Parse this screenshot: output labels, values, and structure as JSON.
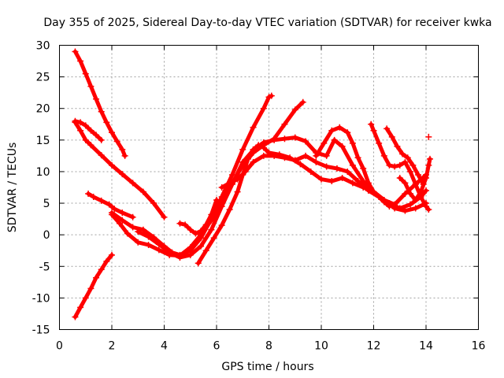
{
  "chart_data": {
    "type": "scatter",
    "title": "Day 355 of 2025, Sidereal Day-to-day VTEC variation (SDTVAR) for receiver kwka",
    "xlabel": "GPS time / hours",
    "ylabel": "SDTVAR / TECUs",
    "xlim": [
      0,
      16
    ],
    "ylim": [
      -15,
      30
    ],
    "x_ticks": [
      0,
      2,
      4,
      6,
      8,
      10,
      12,
      14,
      16
    ],
    "y_ticks": [
      -15,
      -10,
      -5,
      0,
      5,
      10,
      15,
      20,
      25,
      30
    ],
    "grid": true,
    "marker": "plus",
    "color": "#ff0000",
    "series": [
      {
        "x": [
          0.6,
          0.8,
          1.0,
          1.2,
          1.4,
          1.6,
          1.8,
          2.0,
          2.2,
          2.4,
          2.5
        ],
        "y": [
          29,
          27.5,
          25.5,
          23.5,
          21.5,
          19.5,
          17.8,
          16.2,
          14.8,
          13.5,
          12.5
        ]
      },
      {
        "x": [
          0.6,
          0.8,
          1.0,
          1.2,
          1.4,
          1.6
        ],
        "y": [
          18,
          17.8,
          17.3,
          16.5,
          15.8,
          15
        ]
      },
      {
        "x": [
          0.6,
          0.8,
          1.0,
          1.2,
          1.6,
          2.0,
          2.4,
          2.8,
          3.2,
          3.6,
          4.0
        ],
        "y": [
          17.8,
          16.5,
          15,
          14.2,
          12.6,
          11,
          9.6,
          8.2,
          6.8,
          5,
          2.8
        ]
      },
      {
        "x": [
          0.6,
          0.8,
          1.0,
          1.2,
          1.4,
          1.6,
          1.8,
          2.0
        ],
        "y": [
          -13,
          -11.5,
          -10,
          -8.5,
          -6.8,
          -5.5,
          -4.2,
          -3.2
        ]
      },
      {
        "x": [
          1.1,
          1.3,
          1.6,
          1.9,
          2.1,
          2.4,
          2.8
        ],
        "y": [
          6.5,
          6,
          5.4,
          4.8,
          4.1,
          3.5,
          2.8
        ]
      },
      {
        "x": [
          2.0,
          2.4,
          2.8,
          3.2,
          3.6,
          4.0,
          4.3,
          4.6,
          5.0,
          5.4,
          5.8,
          6.2,
          6.6,
          7.0,
          7.4,
          7.8,
          8.0,
          8.1
        ],
        "y": [
          3.5,
          2.3,
          1.2,
          0.8,
          -0.4,
          -1.8,
          -2.8,
          -3.2,
          -2.5,
          -0.5,
          2.5,
          6,
          9.5,
          13.5,
          17,
          20,
          21.8,
          22
        ]
      },
      {
        "x": [
          2.0,
          2.3,
          2.6,
          3.0,
          3.4,
          3.8,
          4.2,
          4.6,
          5.0,
          5.4,
          5.8,
          6.2,
          6.6,
          7.0,
          7.4,
          7.8,
          8.2,
          8.6,
          9.0,
          9.3
        ],
        "y": [
          3.2,
          1.8,
          0.2,
          -1.2,
          -1.6,
          -2.4,
          -3.2,
          -3.3,
          -2,
          0,
          2.3,
          5.2,
          8.2,
          11,
          13,
          14.2,
          15.2,
          17.5,
          19.8,
          21
        ]
      },
      {
        "x": [
          3.0,
          3.4,
          3.8,
          4.2,
          4.6,
          5.0,
          5.4,
          5.8,
          6.2,
          6.6,
          7.0,
          7.4,
          7.8,
          8.2,
          8.6,
          9.0,
          9.4,
          9.8,
          10.2,
          10.5,
          10.8,
          11.2,
          11.6,
          12.0,
          12.4,
          12.8,
          13.2,
          13.6,
          14.0
        ],
        "y": [
          0.5,
          -0.3,
          -1.5,
          -2.8,
          -3.6,
          -3.2,
          -1.8,
          0.8,
          4.5,
          8,
          11.5,
          13.4,
          14.6,
          15,
          15.2,
          15.4,
          14.8,
          13,
          12.5,
          15,
          14,
          11,
          8.5,
          6.8,
          5.5,
          4.8,
          6.5,
          8,
          9.5
        ]
      },
      {
        "x": [
          4.6,
          4.8,
          5.0,
          5.2,
          5.4,
          5.6,
          5.8,
          6.0
        ],
        "y": [
          1.8,
          1.6,
          0.8,
          0.2,
          0.6,
          1.6,
          3.2,
          5.5
        ]
      },
      {
        "x": [
          5.3,
          5.6,
          5.9,
          6.2,
          6.5,
          6.8,
          7.0,
          7.2,
          7.4,
          7.6,
          7.8,
          8.0,
          8.4,
          8.8,
          9.2,
          9.6,
          10.0,
          10.4,
          10.8,
          11.2,
          11.6,
          12.0,
          12.4,
          12.8,
          13.2,
          13.6,
          14.0
        ],
        "y": [
          -4.5,
          -2.5,
          -0.5,
          1.5,
          4,
          6.8,
          9.5,
          12,
          13.5,
          14.2,
          13.8,
          13,
          12.7,
          12.2,
          11.2,
          10,
          8.8,
          8.5,
          9,
          8.2,
          7.5,
          6.8,
          5.5,
          4.2,
          3.8,
          4.2,
          5
        ]
      },
      {
        "x": [
          6.2,
          6.5,
          6.8,
          7.1,
          7.4,
          7.8,
          8.2,
          8.6,
          9.0,
          9.4,
          9.8,
          10.2,
          10.6,
          11.0,
          11.4,
          11.8,
          12.2,
          12.6,
          13.0,
          13.4,
          13.8,
          14.0
        ],
        "y": [
          7.5,
          8.2,
          8.8,
          10,
          11.5,
          12.5,
          12.5,
          12.2,
          11.8,
          12.5,
          11.5,
          10.8,
          10.5,
          10,
          8.5,
          7,
          6,
          5,
          4.2,
          4.8,
          6,
          7
        ]
      },
      {
        "x": [
          9.8,
          10.1,
          10.4,
          10.7,
          11.0,
          11.2,
          11.4,
          11.6,
          11.8,
          12.0,
          12.2,
          12.4,
          12.6
        ],
        "y": [
          12.5,
          14.5,
          16.5,
          17,
          16.2,
          14.5,
          12.2,
          10.5,
          8.2,
          6.8,
          6,
          5.2,
          4.5
        ]
      },
      {
        "x": [
          11.9,
          12.0,
          12.2,
          12.4,
          12.6,
          12.8,
          13.0,
          13.2,
          13.4,
          13.6,
          13.8,
          14.0,
          14.1
        ],
        "y": [
          17.5,
          16.5,
          14.5,
          12.5,
          11,
          10.8,
          11,
          11.5,
          10,
          8,
          6,
          4.5,
          4
        ]
      },
      {
        "x": [
          12.5,
          12.7,
          12.9,
          13.1,
          13.3,
          13.5,
          13.7,
          13.9
        ],
        "y": [
          16.8,
          15.5,
          14,
          12.8,
          12.2,
          11,
          9.5,
          8
        ]
      },
      {
        "x": [
          13.0,
          13.2,
          13.4,
          13.6,
          13.8,
          14.0,
          14.1,
          14.15
        ],
        "y": [
          9,
          8.2,
          6.5,
          5.5,
          6.8,
          9,
          11,
          12
        ]
      },
      {
        "x": [
          14.1
        ],
        "y": [
          15.5
        ]
      }
    ]
  }
}
